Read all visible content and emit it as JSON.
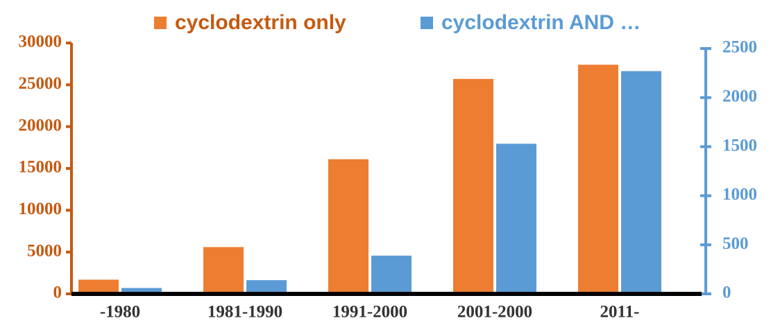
{
  "chart_data": {
    "type": "bar",
    "categories": [
      "-1980",
      "1981-1990",
      "1991-2000",
      "2001-2000",
      "2011-"
    ],
    "series": [
      {
        "name": "cyclodextrin only",
        "color": "#ed7d31",
        "values": [
          1700,
          5600,
          16100,
          25700,
          27400
        ]
      },
      {
        "name": "cyclodextrin AND …",
        "color": "#5b9bd5",
        "axis": "y2",
        "values": [
          60,
          140,
          390,
          1530,
          2270
        ]
      }
    ],
    "ylim": [
      0,
      30000
    ],
    "yticks": [
      0,
      5000,
      10000,
      15000,
      20000,
      25000,
      30000
    ],
    "ycolor": "#c55a11",
    "y2lim": [
      0,
      2500
    ],
    "y2ticks": [
      0,
      500,
      1000,
      1500,
      2000,
      2500
    ],
    "y2color": "#5b9bd5",
    "legend": "top"
  }
}
